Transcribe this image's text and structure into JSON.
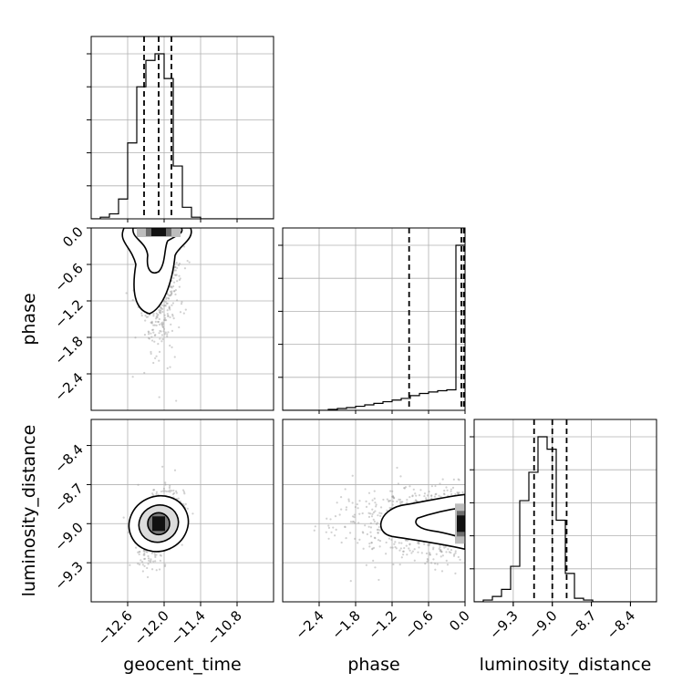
{
  "chart_data": {
    "type": "corner",
    "parameters": [
      {
        "name": "geocent_time",
        "range": [
          -13.2,
          -10.2
        ],
        "ticks": [
          "−12.6",
          "−12.0",
          "−11.4",
          "−10.8"
        ],
        "tick_values": [
          -12.6,
          -12.0,
          -11.4,
          -10.8
        ],
        "quantiles": [
          -12.33,
          -12.09,
          -11.88
        ]
      },
      {
        "name": "phase",
        "range": [
          -3.0,
          0.0
        ],
        "ticks": [
          "−2.4",
          "−1.8",
          "−1.2",
          "−0.6",
          "0.0"
        ],
        "tick_values": [
          -2.4,
          -1.8,
          -1.2,
          -0.6,
          0.0
        ],
        "quantiles": [
          -0.92,
          -0.06,
          -0.02
        ]
      },
      {
        "name": "luminosity_distance",
        "range": [
          -9.6,
          -8.2
        ],
        "ticks": [
          "−9.3",
          "−9.0",
          "−8.7",
          "−8.4"
        ],
        "tick_values": [
          -9.3,
          -9.0,
          -8.7,
          -8.4
        ],
        "quantiles": [
          -9.14,
          -9.0,
          -8.89
        ]
      }
    ],
    "histograms": {
      "geocent_time": {
        "edges": [
          -13.2,
          -13.05,
          -12.9,
          -12.75,
          -12.6,
          -12.45,
          -12.3,
          -12.15,
          -12.0,
          -11.85,
          -11.7,
          -11.55,
          -11.4,
          -11.25,
          -11.1,
          -10.95,
          -10.8,
          -10.65,
          -10.5,
          -10.35,
          -10.2
        ],
        "counts": [
          0,
          0.01,
          0.03,
          0.12,
          0.46,
          0.8,
          0.96,
          1.0,
          0.85,
          0.32,
          0.07,
          0.01,
          0,
          0,
          0,
          0,
          0,
          0,
          0,
          0
        ]
      },
      "phase": {
        "edges": [
          -3.0,
          -2.85,
          -2.7,
          -2.55,
          -2.4,
          -2.25,
          -2.1,
          -1.95,
          -1.8,
          -1.65,
          -1.5,
          -1.35,
          -1.2,
          -1.05,
          -0.9,
          -0.75,
          -0.6,
          -0.45,
          -0.3,
          -0.15,
          0.0
        ],
        "counts": [
          0,
          0,
          0,
          0,
          0,
          0.005,
          0.01,
          0.015,
          0.022,
          0.03,
          0.038,
          0.047,
          0.056,
          0.065,
          0.08,
          0.092,
          0.1,
          0.107,
          0.112,
          0.9
        ]
      },
      "luminosity_distance": {
        "edges": [
          -9.6,
          -9.53,
          -9.46,
          -9.39,
          -9.32,
          -9.25,
          -9.18,
          -9.11,
          -9.04,
          -8.97,
          -8.9,
          -8.83,
          -8.76,
          -8.69,
          -8.62,
          -8.55,
          -8.48,
          -8.41,
          -8.34,
          -8.27,
          -8.2
        ],
        "counts": [
          0,
          0.01,
          0.03,
          0.07,
          0.2,
          0.57,
          0.73,
          0.93,
          0.86,
          0.46,
          0.16,
          0.02,
          0.01,
          0,
          0,
          0,
          0,
          0,
          0,
          0
        ]
      }
    },
    "pairs": [
      {
        "x": "geocent_time",
        "y": "phase",
        "center": [
          -12.09,
          -0.05
        ]
      },
      {
        "x": "geocent_time",
        "y": "luminosity_distance",
        "center": [
          -12.09,
          -9.0
        ]
      },
      {
        "x": "phase",
        "y": "luminosity_distance",
        "center": [
          -0.05,
          -9.0
        ]
      }
    ],
    "grid": true
  }
}
